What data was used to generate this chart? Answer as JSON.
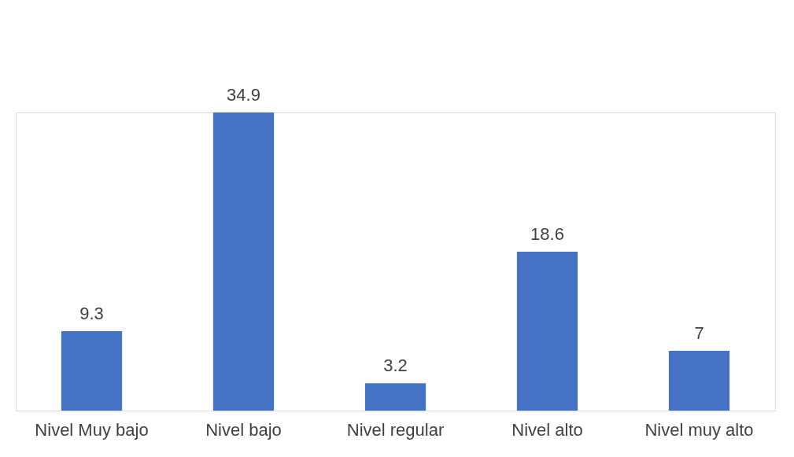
{
  "chart_data": {
    "type": "bar",
    "categories": [
      "Nivel Muy bajo",
      "Nivel bajo",
      "Nivel regular",
      "Nivel alto",
      "Nivel muy alto"
    ],
    "values": [
      9.3,
      34.9,
      3.2,
      18.6,
      7
    ],
    "color": "#4472c4",
    "data_labels": true,
    "grid": false
  }
}
